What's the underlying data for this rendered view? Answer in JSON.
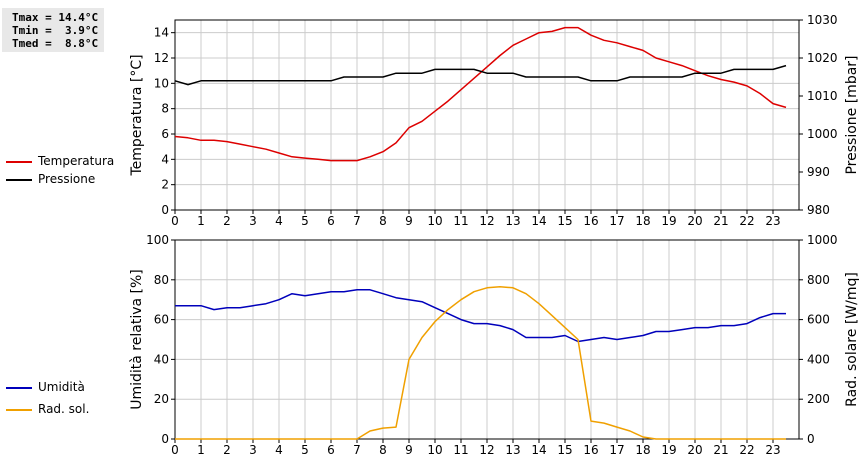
{
  "stats": {
    "tmax": "Tmax = 14.4°C",
    "tmin": "Tmin =  3.9°C",
    "tmed": "Tmed =  8.8°C"
  },
  "colors": {
    "temperature": "#dd0000",
    "pressure": "#000000",
    "humidity": "#0000bb",
    "radiation": "#f0a000",
    "grid": "#cccccc"
  },
  "chart_data": [
    {
      "type": "line",
      "x_ticks": [
        "0",
        "1",
        "2",
        "3",
        "4",
        "5",
        "6",
        "7",
        "8",
        "9",
        "10",
        "11",
        "12",
        "13",
        "14",
        "15",
        "16",
        "17",
        "18",
        "19",
        "20",
        "21",
        "22",
        "23"
      ],
      "xlim": [
        0,
        24
      ],
      "ylabel": "Temperatura [°C]",
      "ylabel_right": "Pressione [mbar]",
      "ylim": [
        0,
        15
      ],
      "ylim_right": [
        980,
        1030
      ],
      "y_ticks": [
        "0",
        "2",
        "4",
        "6",
        "8",
        "10",
        "12",
        "14"
      ],
      "y_ticks_right": [
        "980",
        "990",
        "1000",
        "1010",
        "1020",
        "1030"
      ],
      "grid": true,
      "legend_position": "left",
      "series": [
        {
          "name": "Temperatura",
          "axis": "left",
          "x": [
            0,
            0.5,
            1,
            1.5,
            2,
            2.5,
            3,
            3.5,
            4,
            4.5,
            5,
            5.5,
            6,
            6.5,
            7,
            7.5,
            8,
            8.5,
            9,
            9.5,
            10,
            10.5,
            11,
            11.5,
            12,
            12.5,
            13,
            13.5,
            14,
            14.5,
            15,
            15.5,
            16,
            16.5,
            17,
            17.5,
            18,
            18.5,
            19,
            19.5,
            20,
            20.5,
            21,
            21.5,
            22,
            22.5,
            23,
            23.5
          ],
          "values": [
            5.8,
            5.7,
            5.5,
            5.5,
            5.4,
            5.2,
            5.0,
            4.8,
            4.5,
            4.2,
            4.1,
            4.0,
            3.9,
            3.9,
            3.9,
            4.2,
            4.6,
            5.3,
            6.5,
            7.0,
            7.8,
            8.6,
            9.5,
            10.4,
            11.3,
            12.2,
            13.0,
            13.5,
            14.0,
            14.1,
            14.4,
            14.4,
            13.8,
            13.4,
            13.2,
            12.9,
            12.6,
            12.0,
            11.7,
            11.4,
            11.0,
            10.6,
            10.3,
            10.1,
            9.8,
            9.2,
            8.4,
            8.1
          ]
        },
        {
          "name": "Pressione",
          "axis": "right",
          "x": [
            0,
            0.5,
            1,
            1.5,
            2,
            2.5,
            3,
            3.5,
            4,
            4.5,
            5,
            5.5,
            6,
            6.5,
            7,
            7.5,
            8,
            8.5,
            9,
            9.5,
            10,
            10.5,
            11,
            11.5,
            12,
            12.5,
            13,
            13.5,
            14,
            14.5,
            15,
            15.5,
            16,
            16.5,
            17,
            17.5,
            18,
            18.5,
            19,
            19.5,
            20,
            20.5,
            21,
            21.5,
            22,
            22.5,
            23,
            23.5
          ],
          "values": [
            1014,
            1013,
            1014,
            1014,
            1014,
            1014,
            1014,
            1014,
            1014,
            1014,
            1014,
            1014,
            1014,
            1015,
            1015,
            1015,
            1015,
            1016,
            1016,
            1016,
            1017,
            1017,
            1017,
            1017,
            1016,
            1016,
            1016,
            1015,
            1015,
            1015,
            1015,
            1015,
            1014,
            1014,
            1014,
            1015,
            1015,
            1015,
            1015,
            1015,
            1016,
            1016,
            1016,
            1017,
            1017,
            1017,
            1017,
            1018
          ]
        }
      ]
    },
    {
      "type": "line",
      "x_ticks": [
        "0",
        "1",
        "2",
        "3",
        "4",
        "5",
        "6",
        "7",
        "8",
        "9",
        "10",
        "11",
        "12",
        "13",
        "14",
        "15",
        "16",
        "17",
        "18",
        "19",
        "20",
        "21",
        "22",
        "23"
      ],
      "xlim": [
        0,
        24
      ],
      "ylabel": "Umidità relativa [%]",
      "ylabel_right": "Rad. solare [W/mq]",
      "ylim": [
        0,
        100
      ],
      "ylim_right": [
        0,
        1000
      ],
      "y_ticks": [
        "0",
        "20",
        "40",
        "60",
        "80",
        "100"
      ],
      "y_ticks_right": [
        "0",
        "200",
        "400",
        "600",
        "800",
        "1000"
      ],
      "grid": true,
      "legend_position": "left",
      "series": [
        {
          "name": "Umidità",
          "axis": "left",
          "x": [
            0,
            0.5,
            1,
            1.5,
            2,
            2.5,
            3,
            3.5,
            4,
            4.5,
            5,
            5.5,
            6,
            6.5,
            7,
            7.5,
            8,
            8.5,
            9,
            9.5,
            10,
            10.5,
            11,
            11.5,
            12,
            12.5,
            13,
            13.5,
            14,
            14.5,
            15,
            15.5,
            16,
            16.5,
            17,
            17.5,
            18,
            18.5,
            19,
            19.5,
            20,
            20.5,
            21,
            21.5,
            22,
            22.5,
            23,
            23.5
          ],
          "values": [
            67,
            67,
            67,
            65,
            66,
            66,
            67,
            68,
            70,
            73,
            72,
            73,
            74,
            74,
            75,
            75,
            73,
            71,
            70,
            69,
            66,
            63,
            60,
            58,
            58,
            57,
            55,
            51,
            51,
            51,
            52,
            49,
            50,
            51,
            50,
            51,
            52,
            54,
            54,
            55,
            56,
            56,
            57,
            57,
            58,
            61,
            63,
            63
          ]
        },
        {
          "name": "Rad. sol.",
          "axis": "right",
          "x": [
            0,
            0.5,
            1,
            1.5,
            2,
            2.5,
            3,
            3.5,
            4,
            4.5,
            5,
            5.5,
            6,
            6.5,
            7,
            7.5,
            8,
            8.5,
            9,
            9.5,
            10,
            10.5,
            11,
            11.5,
            12,
            12.5,
            13,
            13.5,
            14,
            14.5,
            15,
            15.5,
            16,
            16.5,
            17,
            17.5,
            18,
            18.5,
            19,
            19.5,
            20,
            20.5,
            21,
            21.5,
            22,
            22.5,
            23,
            23.5
          ],
          "values": [
            0,
            0,
            0,
            0,
            0,
            0,
            0,
            0,
            0,
            0,
            0,
            0,
            0,
            0,
            0,
            40,
            55,
            60,
            400,
            510,
            590,
            650,
            700,
            740,
            760,
            765,
            760,
            730,
            680,
            620,
            560,
            500,
            90,
            80,
            60,
            40,
            10,
            0,
            0,
            0,
            0,
            0,
            0,
            0,
            0,
            0,
            0,
            0
          ]
        }
      ]
    }
  ]
}
